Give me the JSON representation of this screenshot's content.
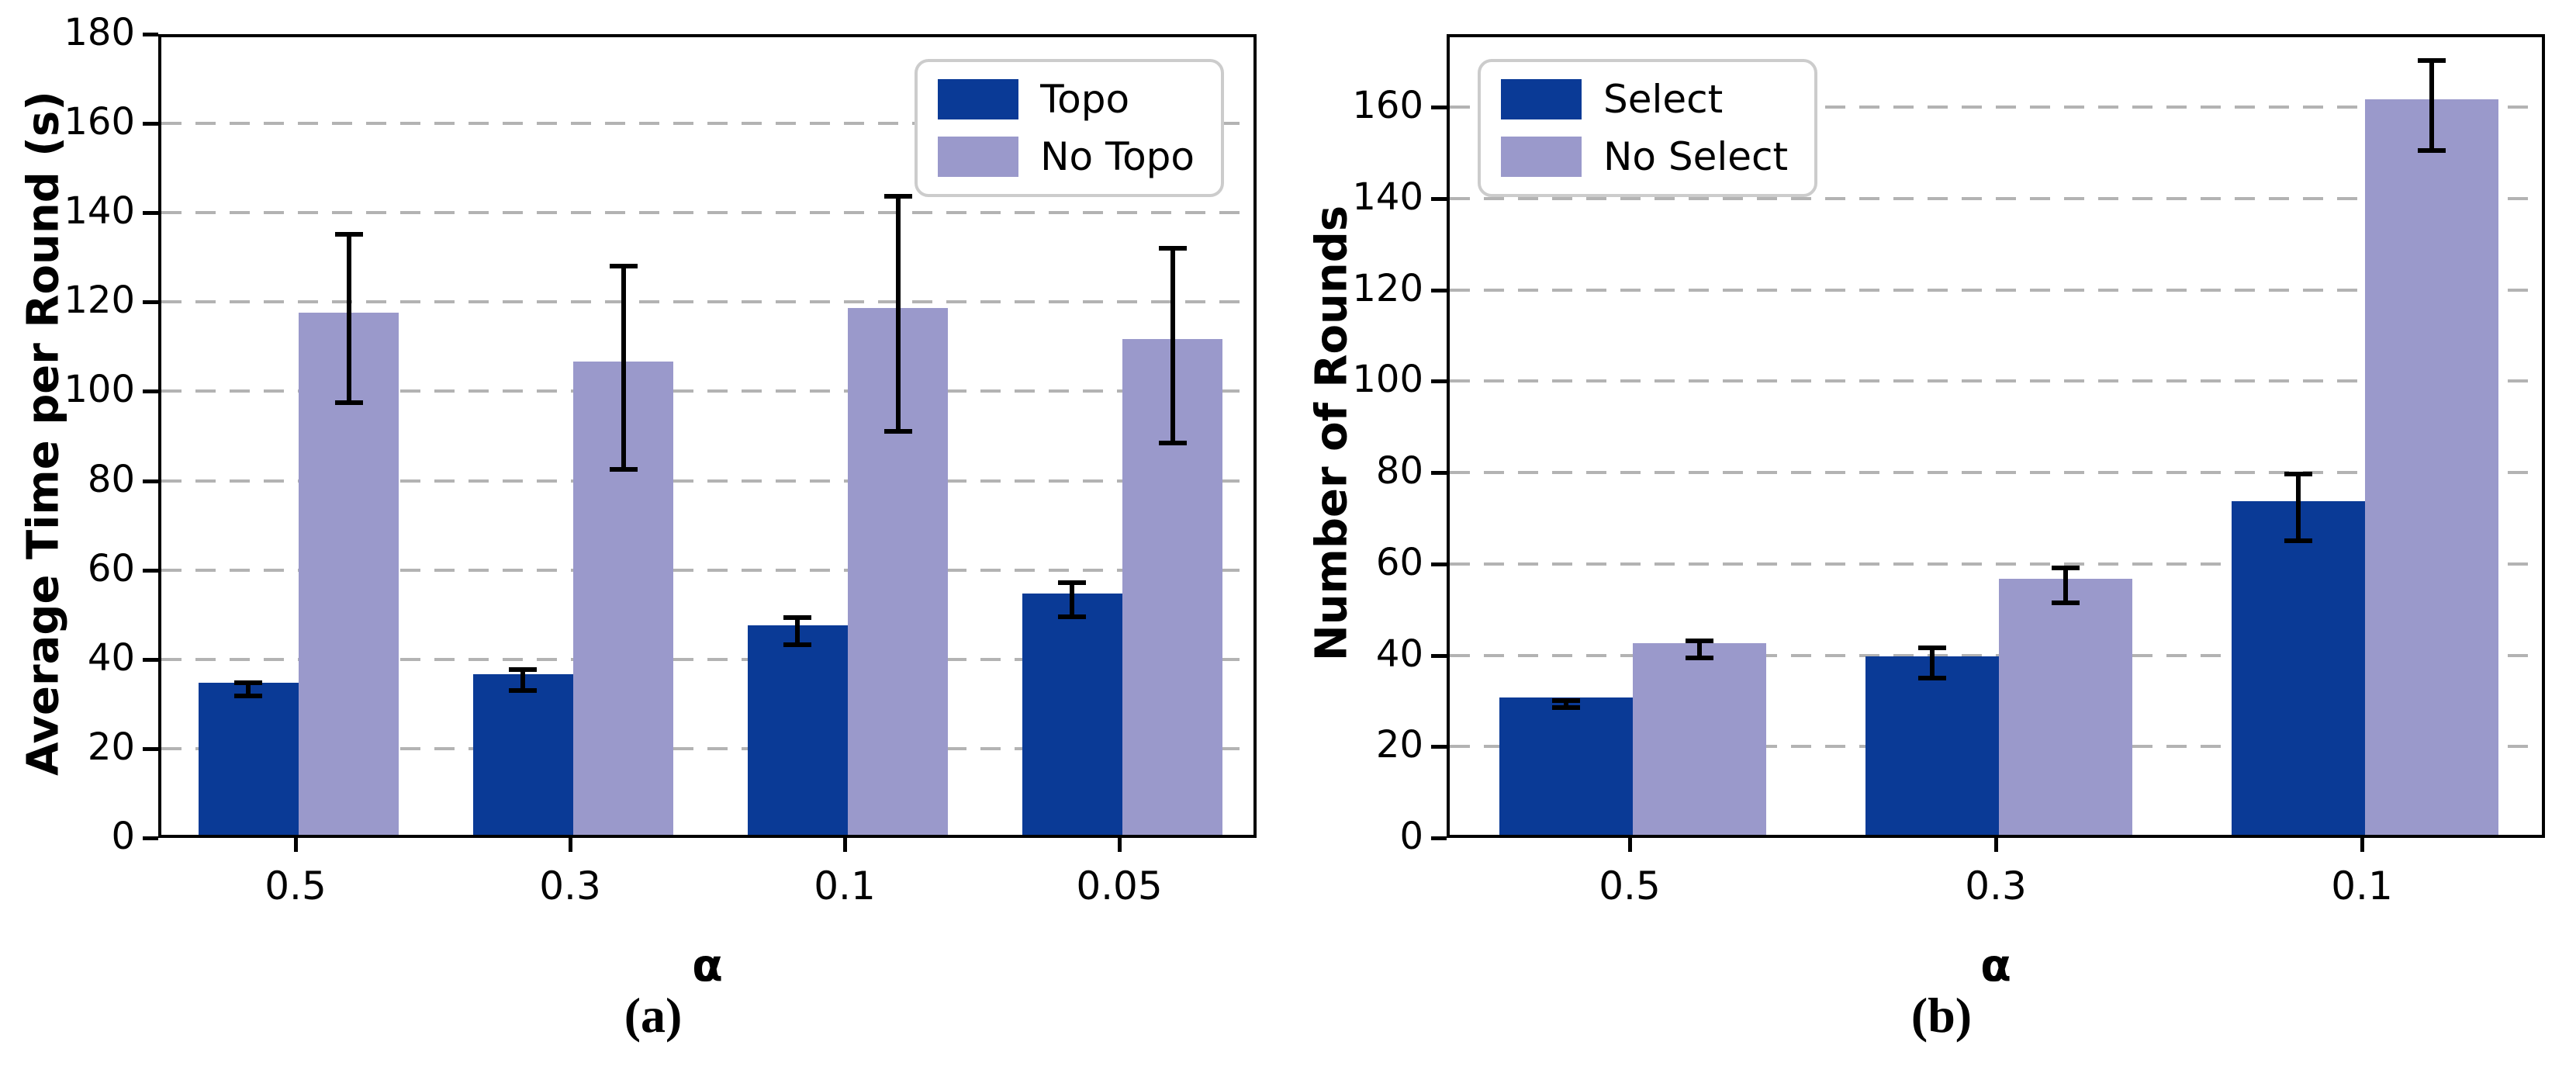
{
  "figure": {
    "background": "#ffffff",
    "colors": {
      "primary": "#0a3a96",
      "secondary": "#9a99cb",
      "grid": "#b3b3b3",
      "spine": "#000000",
      "legend_border": "#cccccc",
      "error_bar": "#000000"
    }
  },
  "chart_data": [
    {
      "type": "bar",
      "panel": "left",
      "caption": "(a)",
      "title": "",
      "xlabel": "α",
      "ylabel": "Average Time per Round (s)",
      "categories": [
        "0.5",
        "0.3",
        "0.1",
        "0.05"
      ],
      "series": [
        {
          "name": "Topo",
          "color_key": "primary",
          "values": [
            34,
            36,
            47,
            54
          ],
          "errors": [
            1.7,
            2.5,
            3.2,
            4
          ]
        },
        {
          "name": "No Topo",
          "color_key": "secondary",
          "values": [
            117,
            106,
            118,
            111
          ],
          "errors": [
            19,
            23,
            26.5,
            22
          ]
        }
      ],
      "ylim": [
        0,
        180
      ],
      "yticks": [
        0,
        20,
        40,
        60,
        80,
        100,
        120,
        140,
        160,
        180
      ],
      "grid": "dashed-horizontal",
      "error_bars": true,
      "legend_position": "top-right"
    },
    {
      "type": "bar",
      "panel": "right",
      "caption": "(b)",
      "title": "",
      "xlabel": "α",
      "ylabel": "Number of Rounds",
      "categories": [
        "0.5",
        "0.3",
        "0.1"
      ],
      "series": [
        {
          "name": "Select",
          "color_key": "primary",
          "values": [
            30,
            39,
            73
          ],
          "errors": [
            1,
            3.5,
            7.5
          ]
        },
        {
          "name": "No Select",
          "color_key": "secondary",
          "values": [
            42,
            56,
            161
          ],
          "errors": [
            2,
            4,
            10
          ]
        }
      ],
      "ylim": [
        0,
        176
      ],
      "yticks": [
        0,
        20,
        40,
        60,
        80,
        100,
        120,
        140,
        160
      ],
      "grid": "dashed-horizontal",
      "error_bars": true,
      "legend_position": "top-left"
    }
  ]
}
